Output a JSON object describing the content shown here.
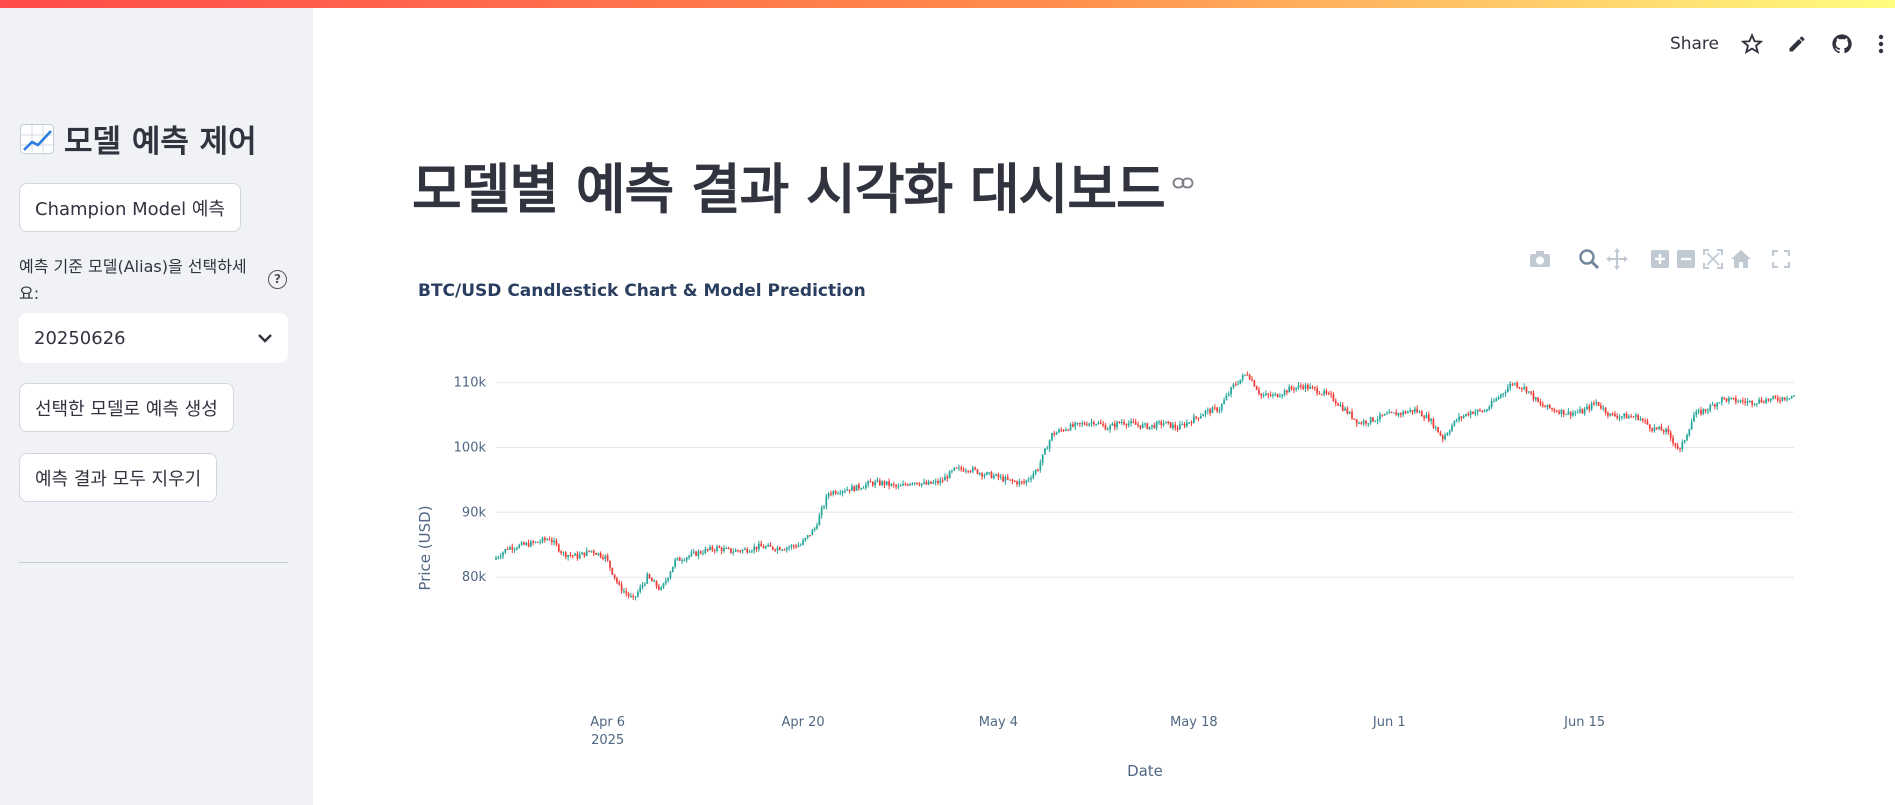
{
  "sidebar": {
    "header": "모델 예측 제어",
    "champion_button": "Champion Model 예측",
    "select_label": "예측 기준 모델(Alias)을 선택하세요:",
    "select_value": "20250626",
    "predict_button": "선택한 모델로 예측 생성",
    "clear_button": "예측 결과 모두 지우기"
  },
  "toolbar": {
    "share": "Share",
    "icons": [
      "star-icon",
      "edit-icon",
      "github-icon",
      "more-vert-icon"
    ]
  },
  "main": {
    "title": "모델별 예측 결과 시각화 대시보드"
  },
  "modebar": [
    "camera-icon",
    "zoom-icon",
    "pan-icon",
    "zoom-in-icon",
    "zoom-out-icon",
    "autoscale-icon",
    "reset-icon",
    "fullscreen-icon"
  ],
  "colors": {
    "increasing": "#26a69a",
    "decreasing": "#ef3b36",
    "accent": "#ff4b4b"
  },
  "chart_data": {
    "type": "candlestick",
    "title": "BTC/USD Candlestick Chart & Model Prediction",
    "xlabel": "Date",
    "ylabel": "Price (USD)",
    "x_range": [
      "2025-03-29",
      "2025-06-30"
    ],
    "ylim": [
      74000,
      113500
    ],
    "grid": true,
    "y_ticks": [
      80000,
      90000,
      100000,
      110000
    ],
    "y_tick_labels": [
      "80k",
      "90k",
      "100k",
      "110k"
    ],
    "x_ticks": [
      "2025-04-06",
      "2025-04-20",
      "2025-05-04",
      "2025-05-18",
      "2025-06-01",
      "2025-06-15"
    ],
    "x_tick_labels": [
      "Apr 6",
      "Apr 20",
      "May 4",
      "May 18",
      "Jun 1",
      "Jun 15"
    ],
    "x_tick_year_label": "2025",
    "trend": [
      [
        "2025-03-29",
        82700
      ],
      [
        "2025-03-30",
        84500
      ],
      [
        "2025-04-01",
        85300
      ],
      [
        "2025-04-02",
        86000
      ],
      [
        "2025-04-03",
        83600
      ],
      [
        "2025-04-04",
        83200
      ],
      [
        "2025-04-05",
        84100
      ],
      [
        "2025-04-06",
        83100
      ],
      [
        "2025-04-07",
        78500
      ],
      [
        "2025-04-08",
        76500
      ],
      [
        "2025-04-09",
        80000
      ],
      [
        "2025-04-10",
        78000
      ],
      [
        "2025-04-11",
        82500
      ],
      [
        "2025-04-12",
        83300
      ],
      [
        "2025-04-13",
        84000
      ],
      [
        "2025-04-14",
        84500
      ],
      [
        "2025-04-15",
        84000
      ],
      [
        "2025-04-16",
        84200
      ],
      [
        "2025-04-17",
        84700
      ],
      [
        "2025-04-18",
        84500
      ],
      [
        "2025-04-19",
        84600
      ],
      [
        "2025-04-20",
        85000
      ],
      [
        "2025-04-21",
        87500
      ],
      [
        "2025-04-22",
        93000
      ],
      [
        "2025-04-23",
        93500
      ],
      [
        "2025-04-24",
        93800
      ],
      [
        "2025-04-25",
        94500
      ],
      [
        "2025-04-26",
        94500
      ],
      [
        "2025-04-27",
        93800
      ],
      [
        "2025-04-28",
        94800
      ],
      [
        "2025-04-29",
        94300
      ],
      [
        "2025-04-30",
        94700
      ],
      [
        "2025-05-01",
        96500
      ],
      [
        "2025-05-02",
        96800
      ],
      [
        "2025-05-03",
        96000
      ],
      [
        "2025-05-04",
        95500
      ],
      [
        "2025-05-05",
        94800
      ],
      [
        "2025-05-06",
        94500
      ],
      [
        "2025-05-07",
        96800
      ],
      [
        "2025-05-08",
        102000
      ],
      [
        "2025-05-09",
        103000
      ],
      [
        "2025-05-10",
        103500
      ],
      [
        "2025-05-11",
        104000
      ],
      [
        "2025-05-12",
        103000
      ],
      [
        "2025-05-13",
        104000
      ],
      [
        "2025-05-14",
        103500
      ],
      [
        "2025-05-15",
        103200
      ],
      [
        "2025-05-16",
        103800
      ],
      [
        "2025-05-17",
        103000
      ],
      [
        "2025-05-18",
        104200
      ],
      [
        "2025-05-19",
        105500
      ],
      [
        "2025-05-20",
        106000
      ],
      [
        "2025-05-21",
        109500
      ],
      [
        "2025-05-22",
        111500
      ],
      [
        "2025-05-23",
        108000
      ],
      [
        "2025-05-24",
        108000
      ],
      [
        "2025-05-25",
        109000
      ],
      [
        "2025-05-26",
        109500
      ],
      [
        "2025-05-27",
        108800
      ],
      [
        "2025-05-28",
        107800
      ],
      [
        "2025-05-29",
        105800
      ],
      [
        "2025-05-30",
        103800
      ],
      [
        "2025-05-31",
        104300
      ],
      [
        "2025-06-01",
        105000
      ],
      [
        "2025-06-02",
        105300
      ],
      [
        "2025-06-03",
        105800
      ],
      [
        "2025-06-04",
        104500
      ],
      [
        "2025-06-05",
        101500
      ],
      [
        "2025-06-06",
        104300
      ],
      [
        "2025-06-07",
        105500
      ],
      [
        "2025-06-08",
        105600
      ],
      [
        "2025-06-09",
        107800
      ],
      [
        "2025-06-10",
        110000
      ],
      [
        "2025-06-11",
        109000
      ],
      [
        "2025-06-12",
        106500
      ],
      [
        "2025-06-13",
        105800
      ],
      [
        "2025-06-14",
        105300
      ],
      [
        "2025-06-15",
        105500
      ],
      [
        "2025-06-16",
        107000
      ],
      [
        "2025-06-17",
        105000
      ],
      [
        "2025-06-18",
        104800
      ],
      [
        "2025-06-19",
        104700
      ],
      [
        "2025-06-20",
        103000
      ],
      [
        "2025-06-21",
        102500
      ],
      [
        "2025-06-22",
        99500
      ],
      [
        "2025-06-23",
        105000
      ],
      [
        "2025-06-24",
        106000
      ],
      [
        "2025-06-25",
        107500
      ],
      [
        "2025-06-26",
        107200
      ],
      [
        "2025-06-27",
        107000
      ],
      [
        "2025-06-28",
        107300
      ],
      [
        "2025-06-29",
        107500
      ],
      [
        "2025-06-30",
        108000
      ]
    ]
  }
}
